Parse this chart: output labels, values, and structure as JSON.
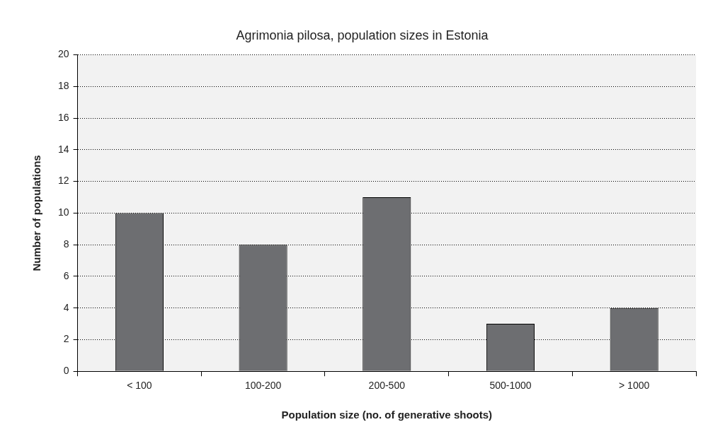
{
  "chart_data": {
    "type": "bar",
    "title": "Agrimonia pilosa, population sizes in Estonia",
    "xlabel": "Population size (no. of generative shoots)",
    "ylabel": "Number of populations",
    "categories": [
      "< 100",
      "100-200",
      "200-500",
      "500-1000",
      "> 1000"
    ],
    "values": [
      10,
      8,
      11,
      3,
      4
    ],
    "color": "#6d6e71",
    "ylim": [
      0,
      20
    ],
    "yticks": [
      0,
      2,
      4,
      6,
      8,
      10,
      12,
      14,
      16,
      18,
      20
    ],
    "grid": "y",
    "legend": false
  }
}
